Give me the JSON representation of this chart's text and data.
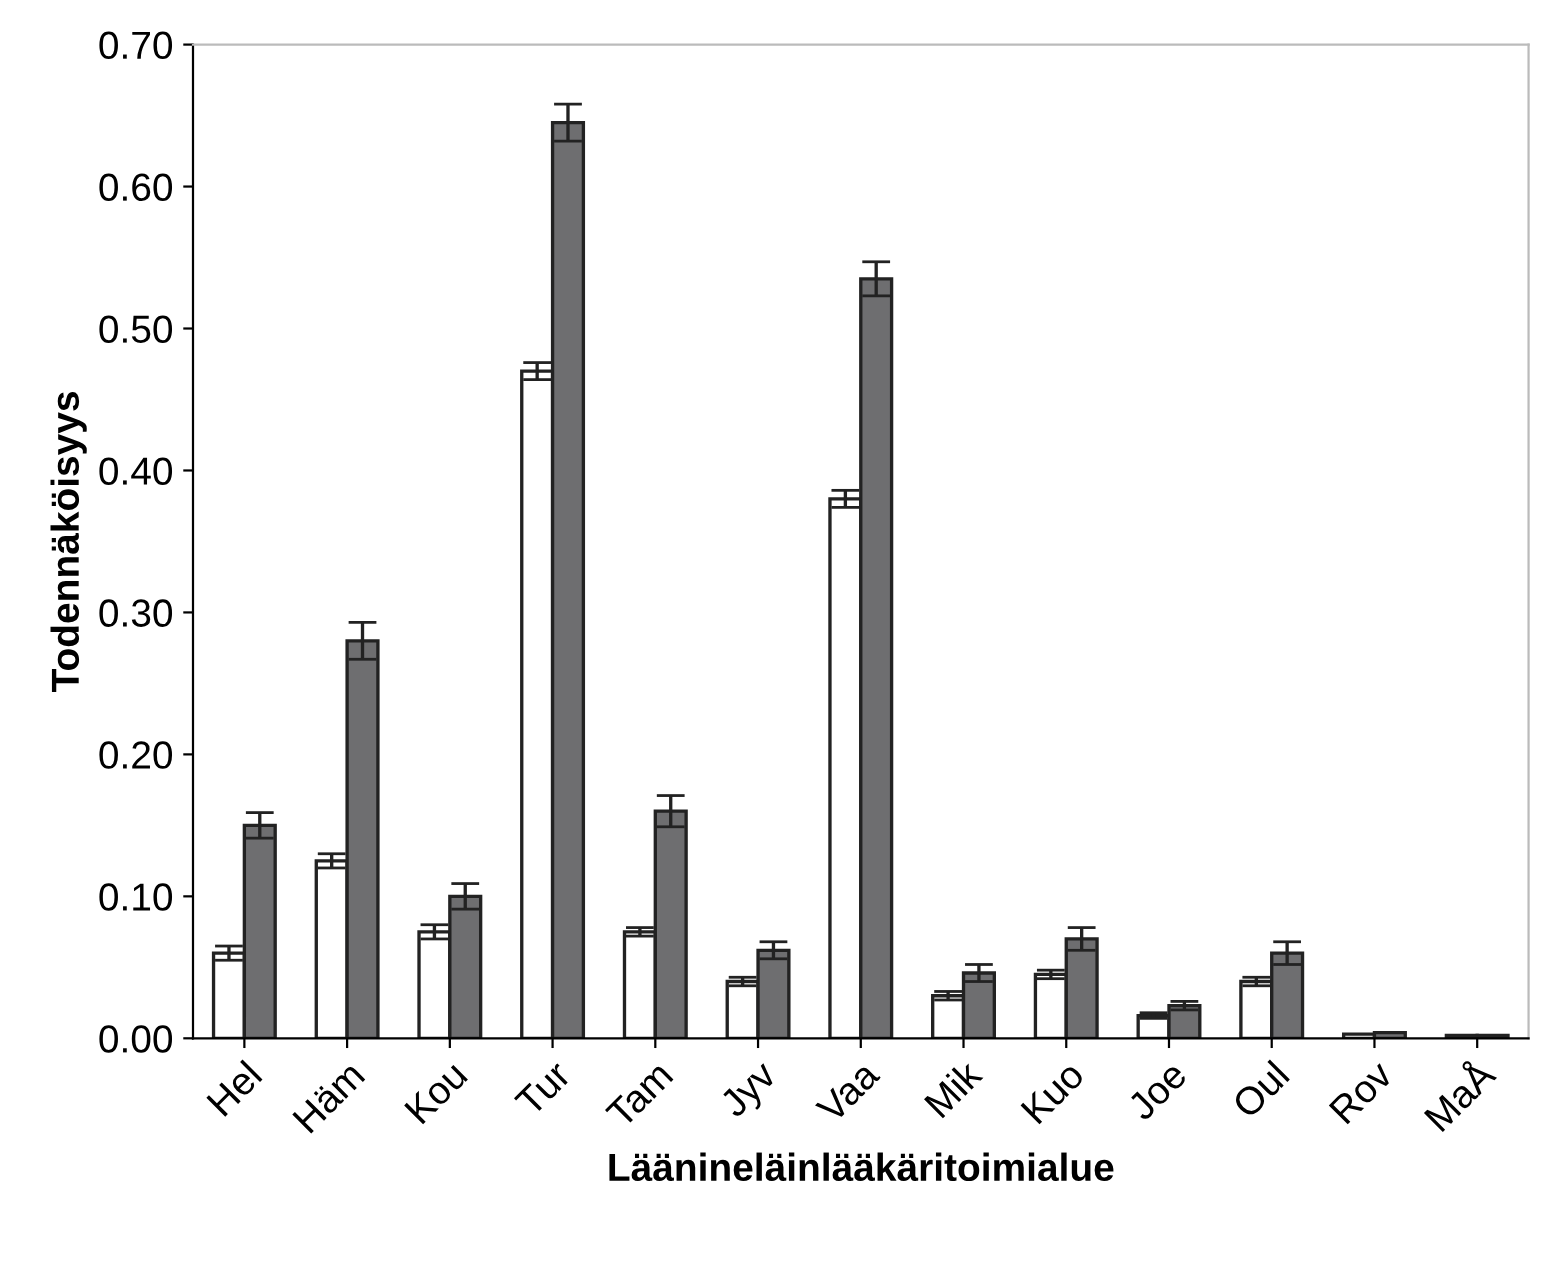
{
  "chart_data": {
    "type": "bar",
    "xlabel": "Läänineläinlääkäritoimialue",
    "ylabel": "Todennäköisyys",
    "categories": [
      "Hel",
      "Häm",
      "Kou",
      "Tur",
      "Tam",
      "Jyv",
      "Vaa",
      "Mik",
      "Kuo",
      "Joe",
      "Oul",
      "Rov",
      "MaÅ"
    ],
    "series": [
      {
        "color": "#ffffff",
        "values": [
          0.06,
          0.125,
          0.075,
          0.47,
          0.075,
          0.04,
          0.38,
          0.03,
          0.045,
          0.016,
          0.04,
          0.003,
          0.002
        ],
        "errors": [
          0.005,
          0.005,
          0.005,
          0.006,
          0.003,
          0.003,
          0.006,
          0.003,
          0.003,
          0.002,
          0.003,
          null,
          null
        ]
      },
      {
        "color": "#6e6e70",
        "values": [
          0.15,
          0.28,
          0.1,
          0.645,
          0.16,
          0.062,
          0.535,
          0.046,
          0.07,
          0.023,
          0.06,
          0.004,
          0.002
        ],
        "errors": [
          0.009,
          0.013,
          0.009,
          0.013,
          0.011,
          0.006,
          0.012,
          0.006,
          0.008,
          0.003,
          0.008,
          null,
          null
        ]
      }
    ],
    "ylim": [
      0,
      0.7
    ],
    "yticks": [
      {
        "value": 0,
        "label": "0.00"
      },
      {
        "value": 0.1,
        "label": "0.10"
      },
      {
        "value": 0.2,
        "label": "0.20"
      },
      {
        "value": 0.3,
        "label": "0.30"
      },
      {
        "value": 0.4,
        "label": "0.40"
      },
      {
        "value": 0.5,
        "label": "0.50"
      },
      {
        "value": 0.6,
        "label": "0.60"
      },
      {
        "value": 0.7,
        "label": "0.70"
      }
    ],
    "grid": false,
    "legend": false
  }
}
